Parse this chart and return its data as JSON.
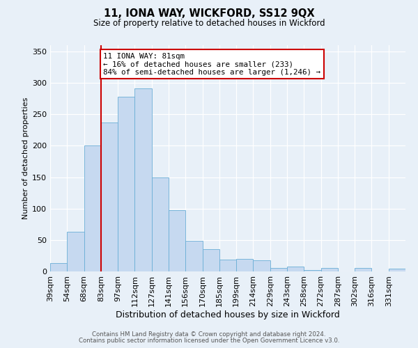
{
  "title": "11, IONA WAY, WICKFORD, SS12 9QX",
  "subtitle": "Size of property relative to detached houses in Wickford",
  "xlabel": "Distribution of detached houses by size in Wickford",
  "ylabel": "Number of detached properties",
  "bin_labels": [
    "39sqm",
    "54sqm",
    "68sqm",
    "83sqm",
    "97sqm",
    "112sqm",
    "127sqm",
    "141sqm",
    "156sqm",
    "170sqm",
    "185sqm",
    "199sqm",
    "214sqm",
    "229sqm",
    "243sqm",
    "258sqm",
    "272sqm",
    "287sqm",
    "302sqm",
    "316sqm",
    "331sqm"
  ],
  "bar_values": [
    13,
    63,
    200,
    237,
    278,
    291,
    150,
    98,
    49,
    35,
    19,
    20,
    18,
    5,
    8,
    2,
    5,
    0,
    5,
    0,
    4
  ],
  "bar_color": "#c6d9f0",
  "bar_edge_color": "#6aaed6",
  "bg_color": "#e8f0f8",
  "vline_index": 3,
  "vline_color": "#cc0000",
  "annotation_line1": "11 IONA WAY: 81sqm",
  "annotation_line2": "← 16% of detached houses are smaller (233)",
  "annotation_line3": "84% of semi-detached houses are larger (1,246) →",
  "ylim_max": 360,
  "yticks": [
    0,
    50,
    100,
    150,
    200,
    250,
    300,
    350
  ],
  "footer1": "Contains HM Land Registry data © Crown copyright and database right 2024.",
  "footer2": "Contains public sector information licensed under the Open Government Licence v3.0."
}
